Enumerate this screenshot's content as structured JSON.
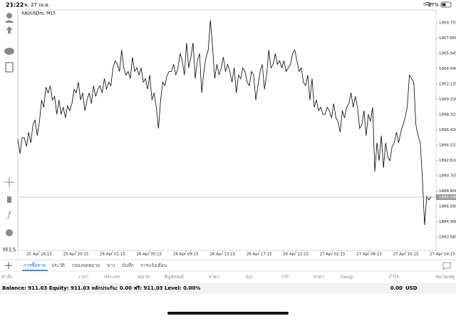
{
  "status_bar": {
    "time": "21:22",
    "date": "พ. 27 เม.ย.",
    "battery": "37%"
  },
  "sidebar": {
    "timeframe": "M15"
  },
  "chart_data": {
    "type": "line",
    "title": "XAUUSDm, M15",
    "color": "#000000",
    "values": [
      1895.25,
      1893.47,
      1895.43,
      1895.43,
      1894.36,
      1896.14,
      1894.81,
      1897.03,
      1897.65,
      1895.7,
      1897.47,
      1900.14,
      1899.25,
      1901.75,
      1901.03,
      1901.92,
      1900.14,
      1900.59,
      1898.36,
      1900.14,
      1898.36,
      1899.25,
      1897.92,
      1899.43,
      1898.81,
      1899.7,
      1901.48,
      1901.03,
      1902.37,
      1900.14,
      1901.03,
      1898.81,
      1900.14,
      1901.03,
      1899.7,
      1901.92,
      1900.59,
      1901.48,
      1901.92,
      1901.03,
      1902.81,
      1901.48,
      1902.37,
      1901.92,
      1904.15,
      1905.04,
      1904.59,
      1903.7,
      1906.37,
      1904.15,
      1903.26,
      1903.7,
      1902.81,
      1905.48,
      1903.7,
      1904.15,
      1903.26,
      1904.15,
      1902.37,
      1902.81,
      1901.48,
      1903.26,
      1900.14,
      1901.03,
      1899.25,
      1896.59,
      1900.14,
      1902.37,
      1901.92,
      1903.26,
      1903.7,
      1903.7,
      1904.59,
      1903.26,
      1904.15,
      1905.93,
      1905.04,
      1903.26,
      1907.26,
      1904.15,
      1905.48,
      1907.26,
      1902.81,
      1905.04,
      1905.93,
      1901.03,
      1903.7,
      1905.48,
      1906.37,
      1910.11,
      1906.82,
      1902.81,
      1904.59,
      1903.26,
      1904.15,
      1905.48,
      1903.7,
      1904.59,
      1903.7,
      1902.37,
      1904.15,
      1901.03,
      1903.26,
      1902.81,
      1904.15,
      1903.7,
      1902.37,
      1901.92,
      1903.7,
      1903.26,
      1900.14,
      1901.92,
      1903.7,
      1904.59,
      1901.48,
      1903.26,
      1906.37,
      1904.15,
      1904.59,
      1905.93,
      1904.59,
      1905.04,
      1904.15,
      1905.04,
      1903.7,
      1904.15,
      1904.59,
      1905.93,
      1906.37,
      1905.04,
      1903.7,
      1904.15,
      1902.37,
      1901.92,
      1903.26,
      1900.14,
      1902.81,
      1899.25,
      1900.14,
      1898.81,
      1899.25,
      1898.36,
      1898.36,
      1899.25,
      1898.81,
      1897.92,
      1899.7,
      1897.92,
      1897.47,
      1896.14,
      1898.81,
      1897.92,
      1899.25,
      1899.7,
      1901.03,
      1899.25,
      1900.59,
      1899.25,
      1896.59,
      1897.03,
      1898.81,
      1895.7,
      1898.36,
      1897.47,
      1899.25,
      1891.25,
      1894.81,
      1892.58,
      1895.7,
      1891.69,
      1894.81,
      1893.03,
      1892.58,
      1894.36,
      1894.81,
      1896.14,
      1894.81,
      1896.14,
      1897.03,
      1897.92,
      1899.25,
      1903.26,
      1902.81,
      1902.37,
      1897.03,
      1895.7,
      1894.81,
      1890.36,
      1884.57,
      1888.13,
      1887.69,
      1888.13
    ],
    "ylim": [
      1881.39,
      1911.36
    ],
    "yticks": [
      1909.755,
      {
        "value": 1907.85,
        "label": "1907.850"
      },
      1905.945,
      {
        "value": 1904.04,
        "label": "1904.040"
      },
      1902.135,
      {
        "value": 1900.23,
        "label": "1900.230"
      },
      1898.325,
      {
        "value": 1896.42,
        "label": "1896.420"
      },
      1894.515,
      {
        "value": 1892.61,
        "label": "1892.610"
      },
      1890.705,
      {
        "value": 1888.8,
        "label": "1888.800"
      },
      1886.895,
      {
        "value": 1884.99,
        "label": "1884.990"
      },
      1883.085
    ],
    "xticks": [
      "25 Apr 16:15",
      "25 Apr 20:15",
      "26 Apr 01:15",
      "26 Apr 05:15",
      "26 Apr 09:15",
      "26 Apr 13:15",
      "26 Apr 17:15",
      "26 Apr 22:15",
      "27 Apr 02:15",
      "27 Apr 06:15",
      "27 Apr 10:15",
      "27 Apr 14:15"
    ],
    "current_price": {
      "value": 1888.04,
      "label": "1888.040"
    }
  },
  "terminal": {
    "tabs": [
      "การซื้อขาย",
      "ประวัติ",
      "กล่องจดหมาย",
      "ข่าว",
      "บันทึก",
      "การแจ้งเตือน"
    ],
    "columns": [
      "คำสั่ง",
      "เวลา",
      "ประเภท",
      "ขนาด",
      "สัญลักษณ์",
      "ราคา",
      "S/L",
      "T/P",
      "ราคา",
      "Swap",
      "กำไร",
      "หมายเหตุ"
    ],
    "balance": "Balance: 911.03 Equity: 911.03 หลักประกัน: 0.00 ฟรี: 911.03 Level: 0.00%",
    "profit": "0.00",
    "currency": "USD"
  }
}
